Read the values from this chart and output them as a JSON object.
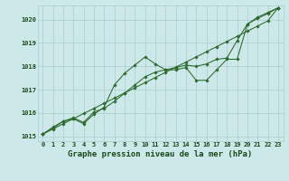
{
  "title": "Graphe pression niveau de la mer (hPa)",
  "xlabel_hours": [
    0,
    1,
    2,
    3,
    4,
    5,
    6,
    7,
    8,
    9,
    10,
    11,
    12,
    13,
    14,
    15,
    16,
    17,
    18,
    19,
    20,
    21,
    22,
    23
  ],
  "line_wavy": [
    1015.1,
    1015.4,
    1015.65,
    1015.75,
    1015.55,
    1015.95,
    1016.25,
    1017.2,
    1017.7,
    1018.05,
    1018.4,
    1018.1,
    1017.85,
    1017.85,
    1017.95,
    1017.4,
    1017.4,
    1017.85,
    1018.3,
    1018.3,
    1019.8,
    1020.1,
    1020.3,
    1020.5
  ],
  "line_mid": [
    1015.1,
    1015.35,
    1015.65,
    1015.8,
    1015.6,
    1016.05,
    1016.2,
    1016.5,
    1016.85,
    1017.2,
    1017.55,
    1017.75,
    1017.85,
    1017.95,
    1018.05,
    1018.0,
    1018.1,
    1018.3,
    1018.35,
    1019.1,
    1019.8,
    1020.05,
    1020.25,
    1020.5
  ],
  "line_straight": [
    1015.1,
    1015.32,
    1015.54,
    1015.76,
    1015.98,
    1016.2,
    1016.42,
    1016.64,
    1016.86,
    1017.08,
    1017.3,
    1017.52,
    1017.74,
    1017.96,
    1018.18,
    1018.4,
    1018.62,
    1018.84,
    1019.06,
    1019.28,
    1019.5,
    1019.72,
    1019.94,
    1020.5
  ],
  "ylim": [
    1014.8,
    1020.6
  ],
  "yticks": [
    1015,
    1016,
    1017,
    1018,
    1019,
    1020
  ],
  "line_color": "#2d6a2d",
  "bg_color": "#cce8e8",
  "grid_color": "#aacece",
  "title_color": "#1a4a1a",
  "title_fontsize": 6.5,
  "tick_fontsize": 5.0
}
